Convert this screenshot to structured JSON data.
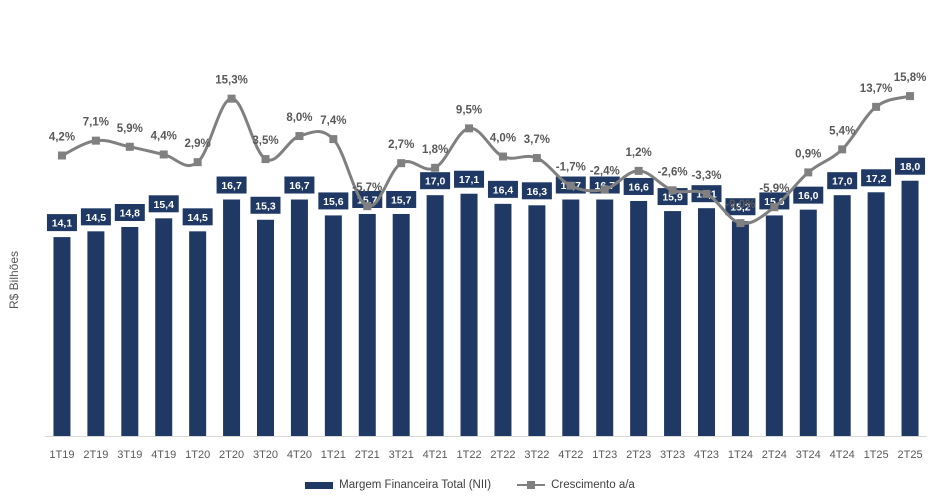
{
  "chart_data": {
    "type": "bar",
    "ylabel": "R$ Bilhões",
    "xlabel": "",
    "categories": [
      "1T19",
      "2T19",
      "3T19",
      "4T19",
      "1T20",
      "2T20",
      "3T20",
      "4T20",
      "1T21",
      "2T21",
      "3T21",
      "4T21",
      "1T22",
      "2T22",
      "3T22",
      "4T22",
      "1T23",
      "2T23",
      "3T23",
      "4T23",
      "1T24",
      "2T24",
      "3T24",
      "4T24",
      "1T25",
      "2T25"
    ],
    "series": [
      {
        "name": "Margem Financeira Total (NII)",
        "type": "bar",
        "color": "#1f3864",
        "values": [
          14.1,
          14.5,
          14.8,
          15.4,
          14.5,
          16.7,
          15.3,
          16.7,
          15.6,
          15.7,
          15.7,
          17.0,
          17.1,
          16.4,
          16.3,
          16.7,
          16.7,
          16.6,
          15.9,
          16.1,
          15.2,
          15.6,
          16.0,
          17.0,
          17.2,
          18.0
        ],
        "labels": [
          "14,1",
          "14,5",
          "14,8",
          "15,4",
          "14,5",
          "16,7",
          "15,3",
          "16,7",
          "15,6",
          "15,7",
          "15,7",
          "17,0",
          "17,1",
          "16,4",
          "16,3",
          "16,7",
          "16,7",
          "16,6",
          "15,9",
          "16,1",
          "15,2",
          "15,6",
          "16,0",
          "17,0",
          "17,2",
          "18,0"
        ]
      },
      {
        "name": "Crescimento a/a",
        "type": "line",
        "color": "#808080",
        "values": [
          4.2,
          7.1,
          5.9,
          4.4,
          2.9,
          15.3,
          3.5,
          8.0,
          7.4,
          -5.7,
          2.7,
          1.8,
          9.5,
          4.0,
          3.7,
          -1.7,
          -2.4,
          1.2,
          -2.6,
          -3.3,
          -9.0,
          -5.9,
          0.9,
          5.4,
          13.7,
          15.8
        ],
        "labels": [
          "4,2%",
          "7,1%",
          "5,9%",
          "4,4%",
          "2,9%",
          "15,3%",
          "3,5%",
          "8,0%",
          "7,4%",
          "-5,7%",
          "2,7%",
          "1,8%",
          "9,5%",
          "4,0%",
          "3,7%",
          "-1,7%",
          "-2,4%",
          "1,2%",
          "-2,6%",
          "-3,3%",
          "-9,0%",
          "-5,9%",
          "0,9%",
          "5,4%",
          "13,7%",
          "15,8%"
        ]
      }
    ],
    "legend": "bottom",
    "grid": false
  }
}
